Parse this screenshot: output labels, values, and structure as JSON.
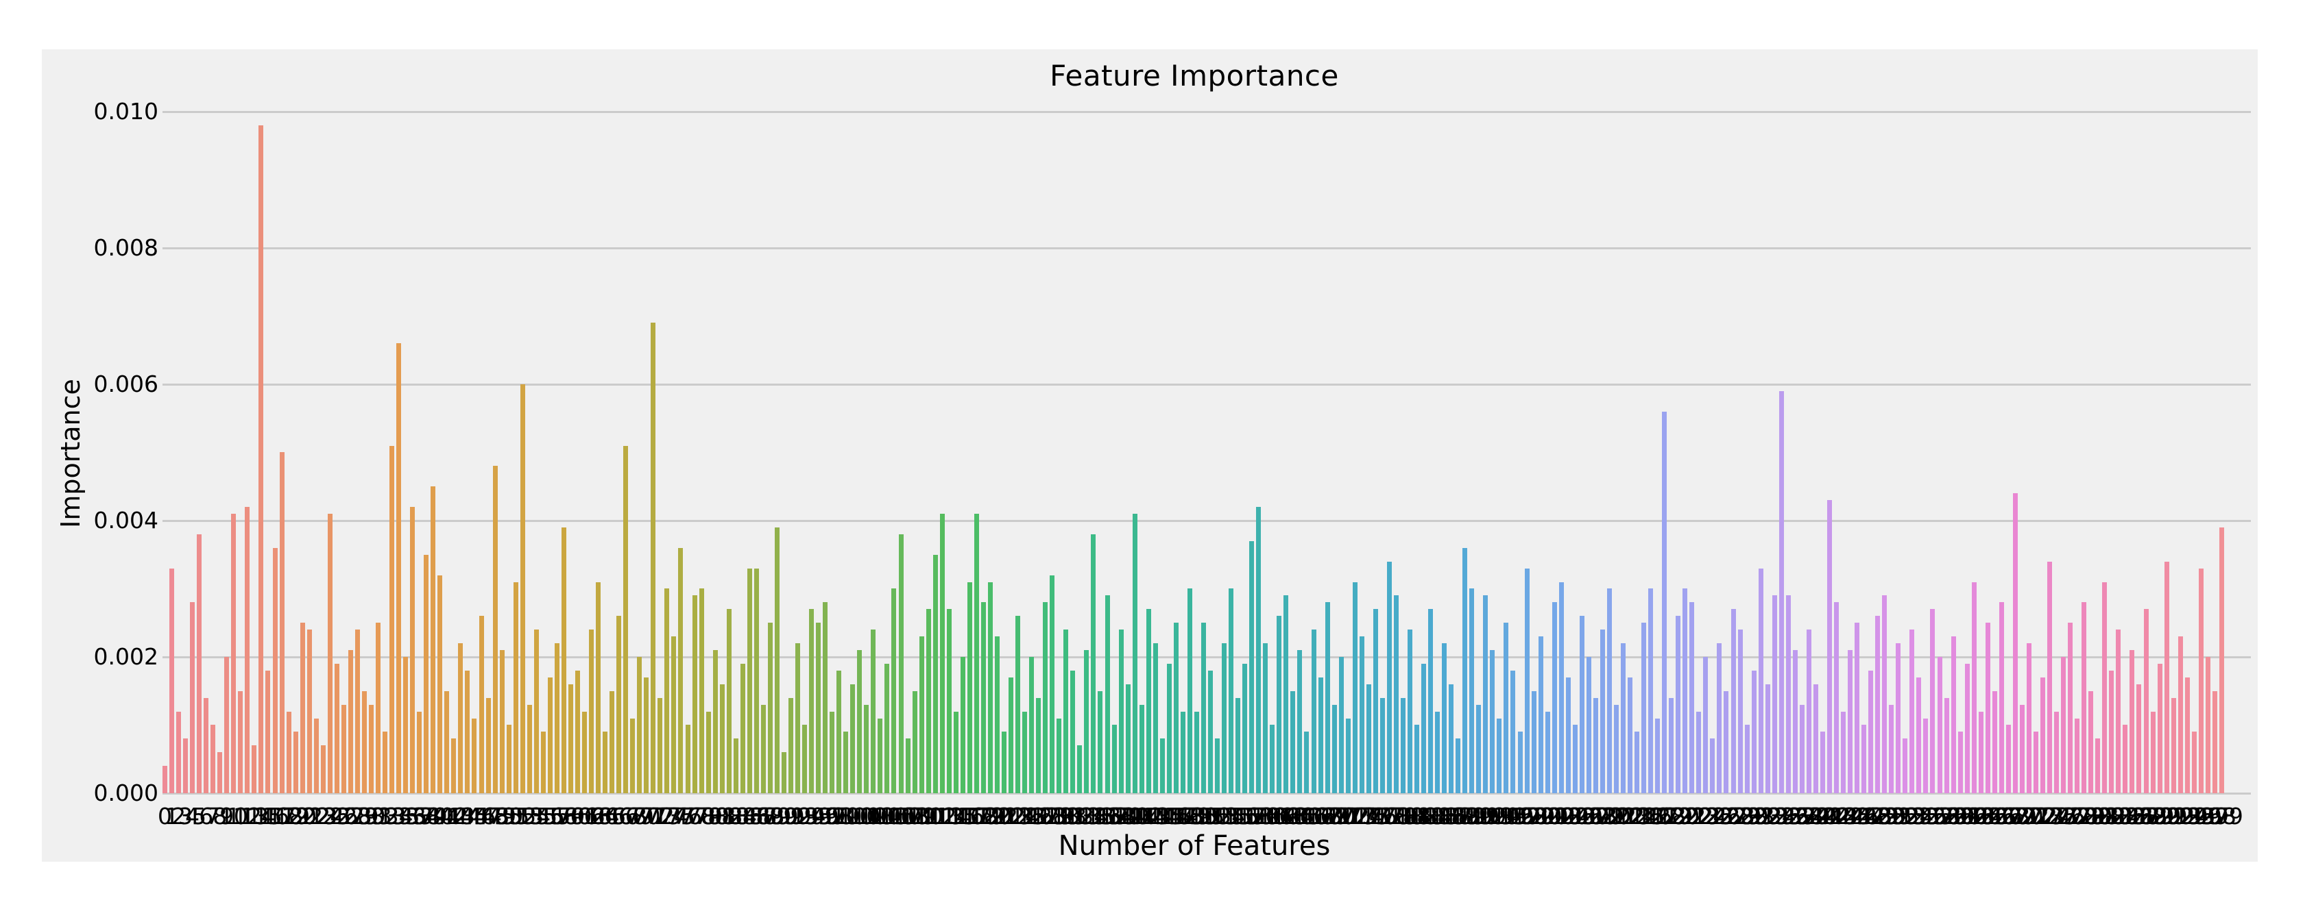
{
  "page": {
    "background": "#ffffff"
  },
  "chart": {
    "title": "Feature Importance",
    "xlabel": "Number of Features",
    "ylabel": "Importance",
    "background": "#f0f0f0",
    "grid_color": "#cbcbcb",
    "text_color": "#000000"
  },
  "chart_data": {
    "type": "bar",
    "title": "Feature Importance",
    "xlabel": "Number of Features",
    "ylabel": "Importance",
    "ylim": [
      0,
      0.01
    ],
    "y_ticks": [
      0.0,
      0.002,
      0.004,
      0.006,
      0.008,
      0.01
    ],
    "y_tick_decimals": 3,
    "grid": true,
    "legend": false,
    "n_bars": 300,
    "x_tick_labels": {
      "start": 0,
      "end": 299,
      "note": "integer labels 0-299, overlapping into a black strip"
    },
    "value_unit": 0.0001,
    "values_x1e4": [
      4,
      33,
      12,
      8,
      28,
      38,
      14,
      10,
      6,
      20,
      41,
      15,
      42,
      7,
      98,
      18,
      36,
      50,
      12,
      9,
      25,
      24,
      11,
      7,
      41,
      19,
      13,
      21,
      24,
      15,
      13,
      25,
      9,
      51,
      66,
      20,
      42,
      12,
      35,
      45,
      32,
      15,
      8,
      22,
      18,
      11,
      26,
      14,
      48,
      21,
      10,
      31,
      60,
      13,
      24,
      9,
      17,
      22,
      39,
      16,
      18,
      12,
      24,
      31,
      9,
      15,
      26,
      51,
      11,
      20,
      17,
      69,
      14,
      30,
      23,
      36,
      10,
      29,
      30,
      12,
      21,
      16,
      27,
      8,
      19,
      33,
      33,
      13,
      25,
      39,
      6,
      14,
      22,
      10,
      27,
      25,
      28,
      12,
      18,
      9,
      16,
      21,
      13,
      24,
      11,
      19,
      30,
      38,
      8,
      15,
      23,
      27,
      35,
      41,
      27,
      12,
      20,
      31,
      41,
      28,
      31,
      23,
      9,
      17,
      26,
      12,
      20,
      14,
      28,
      32,
      11,
      24,
      18,
      7,
      21,
      38,
      15,
      29,
      10,
      24,
      16,
      41,
      13,
      27,
      22,
      8,
      19,
      25,
      12,
      30,
      12,
      25,
      18,
      8,
      22,
      30,
      14,
      19,
      37,
      42,
      22,
      10,
      26,
      29,
      15,
      21,
      9,
      24,
      17,
      28,
      13,
      20,
      11,
      31,
      23,
      16,
      27,
      14,
      34,
      29,
      14,
      24,
      10,
      19,
      27,
      12,
      22,
      16,
      8,
      36,
      30,
      13,
      29,
      21,
      11,
      25,
      18,
      9,
      33,
      15,
      23,
      12,
      28,
      31,
      17,
      10,
      26,
      20,
      14,
      24,
      30,
      13,
      22,
      17,
      9,
      25,
      30,
      11,
      56,
      14,
      26,
      30,
      28,
      12,
      20,
      8,
      22,
      15,
      27,
      24,
      10,
      18,
      33,
      16,
      29,
      59,
      29,
      21,
      13,
      24,
      16,
      9,
      43,
      28,
      12,
      21,
      25,
      10,
      18,
      26,
      29,
      13,
      22,
      8,
      24,
      17,
      11,
      27,
      20,
      14,
      23,
      9,
      19,
      31,
      12,
      25,
      15,
      28,
      10,
      44,
      13,
      22,
      9,
      17,
      34,
      12,
      20,
      25,
      11,
      28,
      15,
      8,
      31,
      18,
      24,
      10,
      21,
      16,
      27,
      12,
      19,
      34,
      14,
      23,
      17,
      9,
      33,
      20,
      15,
      39
    ],
    "palette_anchors": [
      [
        0.0,
        "#ee8a96"
      ],
      [
        0.04,
        "#ec8e7f"
      ],
      [
        0.11,
        "#e59b51"
      ],
      [
        0.19,
        "#cda63f"
      ],
      [
        0.26,
        "#a9ae42"
      ],
      [
        0.32,
        "#83b351"
      ],
      [
        0.385,
        "#4fbd60"
      ],
      [
        0.44,
        "#3dbc80"
      ],
      [
        0.5,
        "#39b59e"
      ],
      [
        0.56,
        "#41aeba"
      ],
      [
        0.62,
        "#4ba9d1"
      ],
      [
        0.675,
        "#74a7e8"
      ],
      [
        0.73,
        "#9ba3f0"
      ],
      [
        0.79,
        "#bd9bee"
      ],
      [
        0.85,
        "#dd8fe5"
      ],
      [
        0.9,
        "#e986d2"
      ],
      [
        0.955,
        "#f088ab"
      ],
      [
        1.0,
        "#f19095"
      ]
    ]
  }
}
